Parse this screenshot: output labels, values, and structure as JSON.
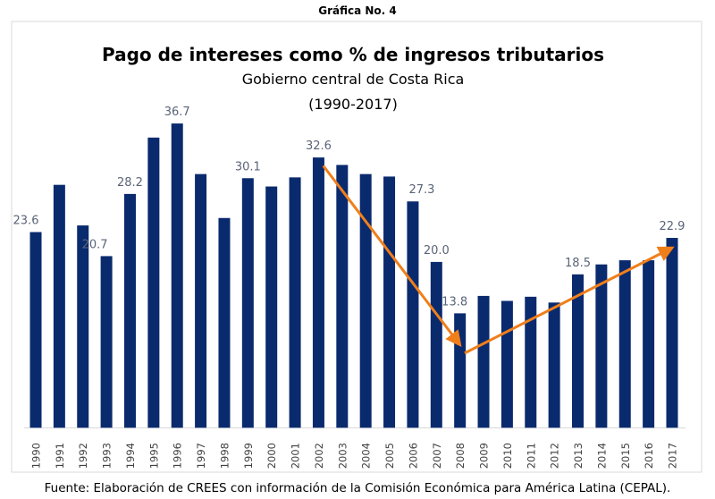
{
  "figure_label": "Gráfica No. 4",
  "source_note": "Fuente: Elaboración de CREES con información de la Comisión Económica para América Latina (CEPAL).",
  "chart_data": {
    "type": "bar",
    "title": "Pago de intereses como % de ingresos tributarios",
    "subtitle": "Gobierno central de Costa Rica",
    "subtitle2": "(1990-2017)",
    "xlabel": "",
    "ylabel": "",
    "ylim": [
      0,
      40
    ],
    "grid": false,
    "bar_color": "#0a2a6e",
    "arrow_color": "#f07f1a",
    "label_color": "#5a6478",
    "categories": [
      "1990",
      "1991",
      "1992",
      "1993",
      "1994",
      "1995",
      "1996",
      "1997",
      "1998",
      "1999",
      "2000",
      "2001",
      "2002",
      "2003",
      "2004",
      "2005",
      "2006",
      "2007",
      "2008",
      "2009",
      "2010",
      "2011",
      "2012",
      "2013",
      "2014",
      "2015",
      "2016",
      "2017"
    ],
    "values": [
      23.6,
      29.3,
      24.4,
      20.7,
      28.2,
      35.0,
      36.7,
      30.6,
      25.3,
      30.1,
      29.1,
      30.2,
      32.6,
      31.7,
      30.6,
      30.3,
      27.3,
      20.0,
      13.8,
      15.9,
      15.3,
      15.8,
      15.1,
      18.5,
      19.7,
      20.2,
      20.2,
      22.9
    ],
    "data_labels": {
      "1990": "23.6",
      "1993": "20.7",
      "1994": "28.2",
      "1996": "36.7",
      "1999": "30.1",
      "2002": "32.6",
      "2006": "27.3",
      "2007": "20.0",
      "2008": "13.8",
      "2013": "18.5",
      "2017": "22.9"
    },
    "annotations": [
      {
        "type": "arrow",
        "from": [
          12.2,
          31.6
        ],
        "to": [
          18.0,
          10.0
        ]
      },
      {
        "type": "arrow",
        "from": [
          18.2,
          9.0
        ],
        "to": [
          27.0,
          21.7
        ]
      }
    ]
  }
}
